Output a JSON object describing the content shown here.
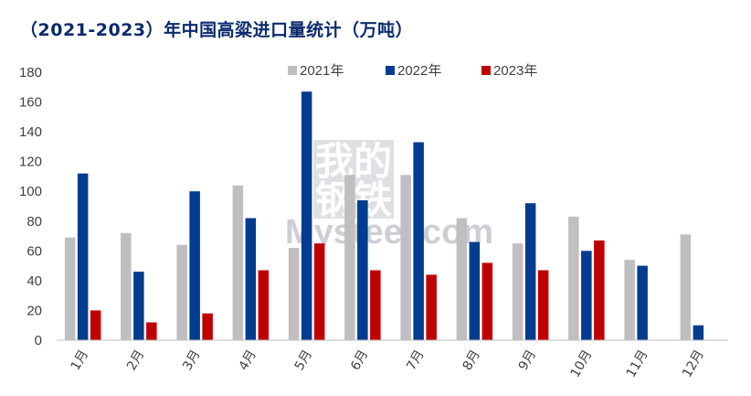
{
  "title": "（2021-2023）年中国高粱进口量统计（万吨）",
  "watermark": {
    "line1": "我的",
    "line2": "钢铁",
    "brand": "Mysteel.com"
  },
  "chart_data": {
    "type": "bar",
    "title": "（2021-2023）年中国高粱进口量统计（万吨）",
    "xlabel": "",
    "ylabel": "",
    "ylim": [
      0,
      180
    ],
    "yticks": [
      0,
      20,
      40,
      60,
      80,
      100,
      120,
      140,
      160,
      180
    ],
    "grid": false,
    "legend_position": "top-center",
    "categories": [
      "1月",
      "2月",
      "3月",
      "4月",
      "5月",
      "6月",
      "7月",
      "8月",
      "9月",
      "10月",
      "11月",
      "12月"
    ],
    "series": [
      {
        "name": "2021年",
        "color": "#bfbfbf",
        "values": [
          69,
          72,
          64,
          104,
          62,
          111,
          111,
          82,
          65,
          83,
          54,
          71
        ]
      },
      {
        "name": "2022年",
        "color": "#003c8f",
        "values": [
          112,
          46,
          100,
          82,
          167,
          94,
          133,
          66,
          92,
          60,
          50,
          10
        ]
      },
      {
        "name": "2023年",
        "color": "#c00000",
        "values": [
          20,
          12,
          18,
          47,
          65,
          47,
          44,
          52,
          47,
          67,
          null,
          null
        ]
      }
    ]
  }
}
